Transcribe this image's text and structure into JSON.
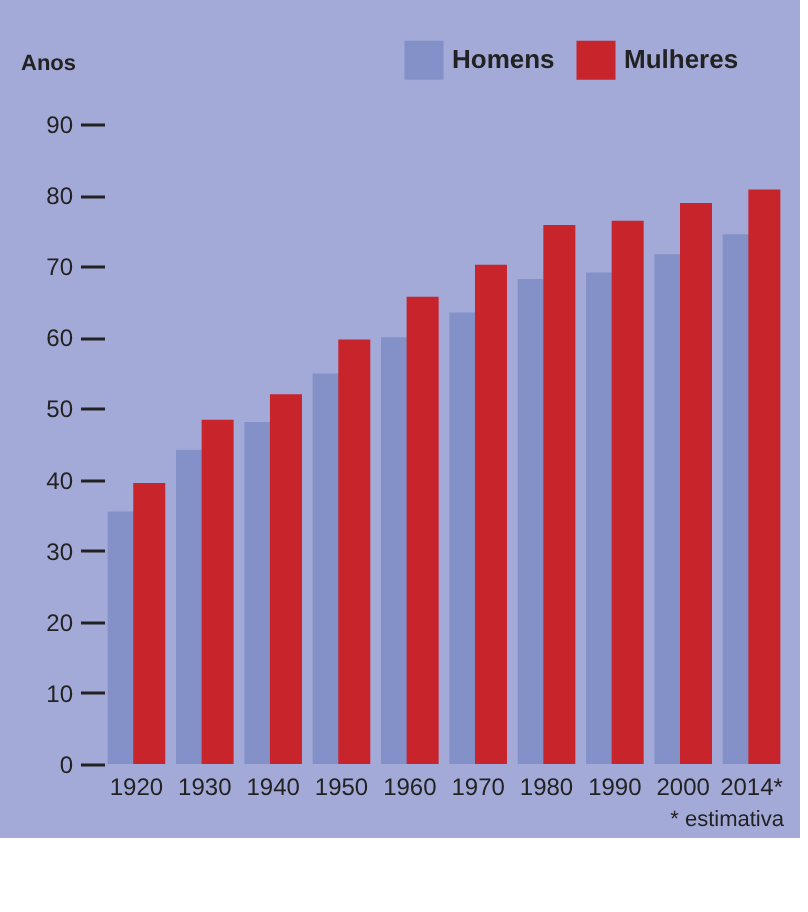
{
  "chart_data": {
    "type": "bar",
    "ylabel": "Anos",
    "categories": [
      "1920",
      "1930",
      "1940",
      "1950",
      "1960",
      "1970",
      "1980",
      "1990",
      "2000",
      "2014*"
    ],
    "series": [
      {
        "name": "Homens",
        "color": "#8490c8",
        "values": [
          35.5,
          44.2,
          48.1,
          54.9,
          60.0,
          63.5,
          68.2,
          69.1,
          71.7,
          74.5
        ]
      },
      {
        "name": "Mulheres",
        "color": "#c8242c",
        "values": [
          39.5,
          48.4,
          52.0,
          59.7,
          65.7,
          70.2,
          75.8,
          76.4,
          78.9,
          80.8
        ]
      }
    ],
    "ylim": [
      0,
      90
    ],
    "yticks": [
      0,
      10,
      20,
      30,
      40,
      50,
      60,
      70,
      80,
      90
    ],
    "grid": false,
    "legend": "top right",
    "annotations": [
      "* estimativa"
    ]
  }
}
